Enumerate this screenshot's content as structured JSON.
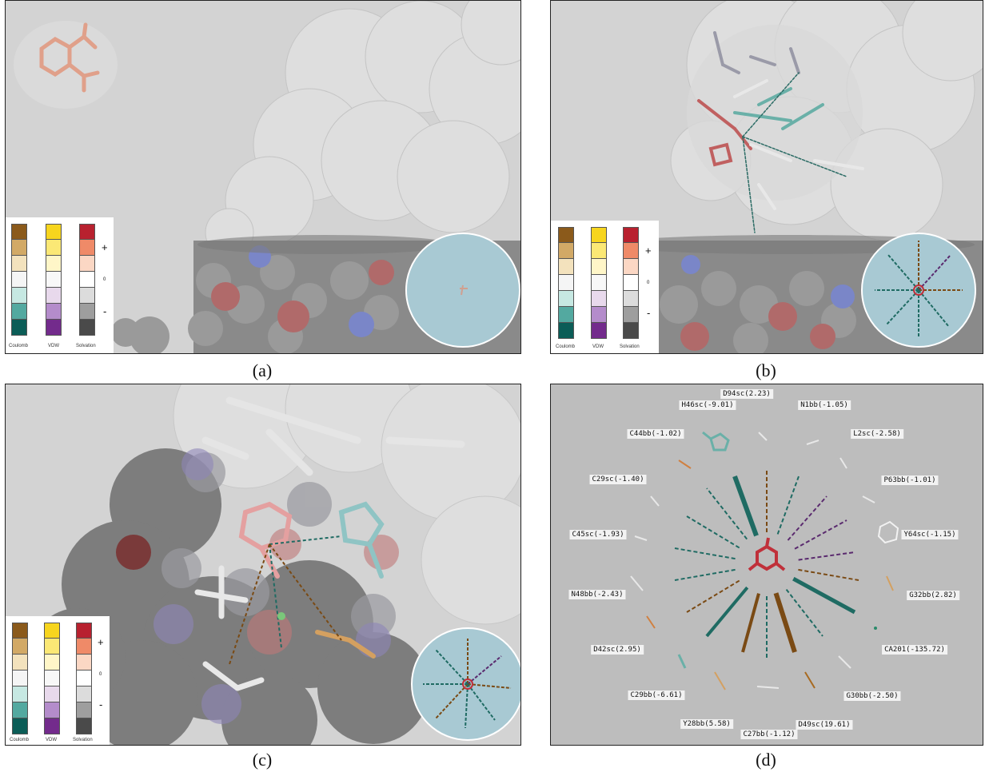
{
  "captions": {
    "a": "(a)",
    "b": "(b)",
    "c": "(c)",
    "d": "(d)"
  },
  "legend": {
    "columns": [
      {
        "name": "Coulomb",
        "colors": [
          "#8b5a1b",
          "#d2a966",
          "#f3e2bd",
          "#f5f5f5",
          "#c6e8e2",
          "#53a9a0",
          "#0b5d57"
        ]
      },
      {
        "name": "VDW",
        "colors": [
          "#f7d51e",
          "#fbe875",
          "#fff6c8",
          "#f8f8f8",
          "#e8d9ec",
          "#b48ccb",
          "#732b8c"
        ]
      },
      {
        "name": "Solvation",
        "colors": [
          "#b8212f",
          "#ef8a68",
          "#fbd7c4",
          "#ffffff",
          "#dcdcdc",
          "#9e9e9e",
          "#4a4a4a"
        ]
      }
    ],
    "plus": "+",
    "zero": "0",
    "minus": "-"
  },
  "colors": {
    "inset_disk": "#a8c9d3",
    "ligand": "#c06060",
    "teal_glyph": "#1f6b63",
    "brown_glyph": "#7a4a14",
    "purple_glyph": "#5a2a6e"
  },
  "panel_d": {
    "residues": [
      {
        "label": "D94sc(2.23)"
      },
      {
        "label": "N1bb(-1.05)"
      },
      {
        "label": "L2sc(-2.58)"
      },
      {
        "label": "P63bb(-1.01)"
      },
      {
        "label": "Y64sc(-1.15)"
      },
      {
        "label": "G32bb(2.82)"
      },
      {
        "label": "CA201(-135.72)"
      },
      {
        "label": "G30bb(-2.50)"
      },
      {
        "label": "D49sc(19.61)"
      },
      {
        "label": "C27bb(-1.12)"
      },
      {
        "label": "Y28bb(5.58)"
      },
      {
        "label": "C29bb(-6.61)"
      },
      {
        "label": "D42sc(2.95)"
      },
      {
        "label": "N48bb(-2.43)"
      },
      {
        "label": "C45sc(-1.93)"
      },
      {
        "label": "C29sc(-1.40)"
      },
      {
        "label": "C44bb(-1.02)"
      },
      {
        "label": "H46sc(-9.01)"
      }
    ]
  }
}
